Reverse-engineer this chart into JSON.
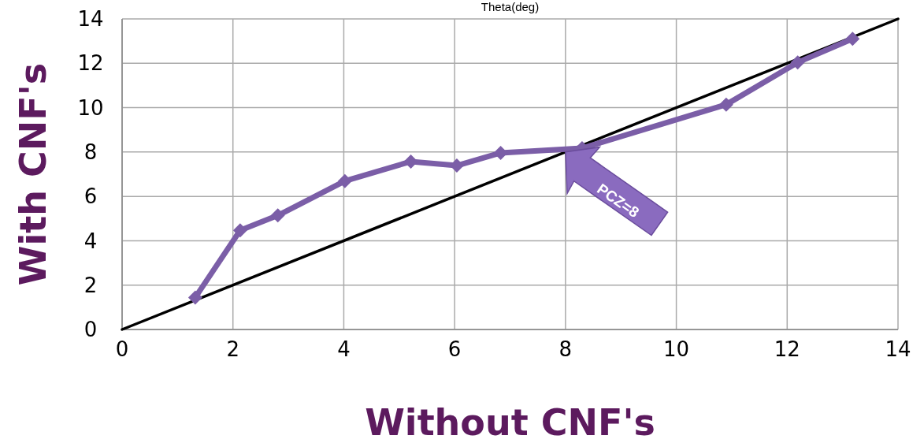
{
  "chart_data": {
    "type": "line",
    "title": "Theta(deg)",
    "xlabel": "Without CNF's",
    "ylabel": "With CNF's",
    "xlim": [
      0,
      14
    ],
    "xticks": [
      0,
      2,
      4,
      6,
      8,
      10,
      12,
      14
    ],
    "ylim": [
      0,
      14
    ],
    "yticks": [
      0,
      2,
      4,
      6,
      8,
      10,
      12,
      14
    ],
    "grid": true,
    "series": [
      {
        "color": "#7b5ea7",
        "marker": "diamond",
        "x": [
          1.32,
          2.13,
          2.81,
          4.02,
          5.21,
          6.04,
          6.83,
          8.3,
          10.9,
          12.19,
          13.18
        ],
        "values": [
          1.44,
          4.47,
          5.14,
          6.69,
          7.57,
          7.39,
          7.96,
          8.17,
          10.14,
          12.04,
          13.1
        ]
      },
      {
        "color": "#000000",
        "marker": "none",
        "x": [
          0,
          14
        ],
        "values": [
          0,
          14
        ]
      }
    ],
    "annotations": [
      {
        "text": "PCZ=8",
        "x": 8,
        "y": 8
      }
    ]
  }
}
